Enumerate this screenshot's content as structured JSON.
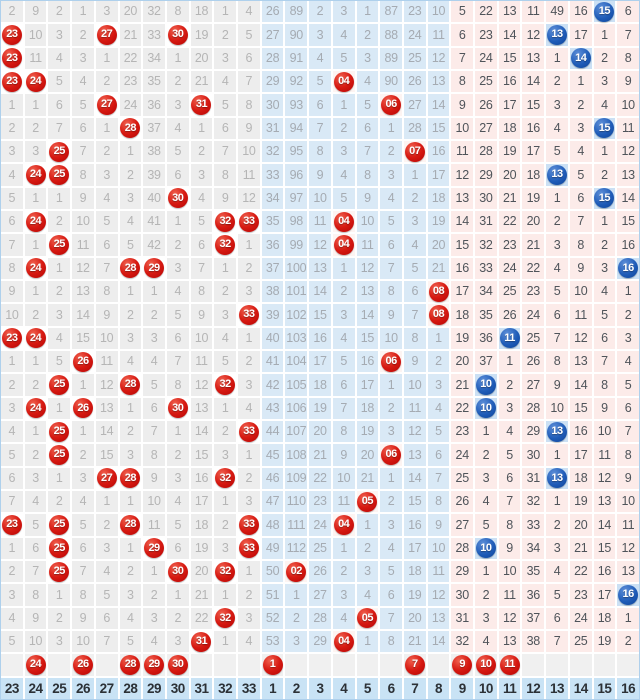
{
  "chart_data": {
    "type": "table",
    "description": "Lottery trend chart: per-number miss counts; R-prefixed cells are drawn red balls, B-prefixed cells are drawn blue balls",
    "sections": [
      {
        "name": "red-zone",
        "label_range": "23-33",
        "col_start": 0,
        "col_end": 10
      },
      {
        "name": "blue-zone-low",
        "label_range": "1-8",
        "col_start": 11,
        "col_end": 18
      },
      {
        "name": "blue-zone-high",
        "label_range": "9-16",
        "col_start": 19,
        "col_end": 26
      }
    ],
    "column_labels": [
      "23",
      "24",
      "25",
      "26",
      "27",
      "28",
      "29",
      "30",
      "31",
      "32",
      "33",
      "1",
      "2",
      "3",
      "4",
      "5",
      "6",
      "7",
      "8",
      "9",
      "10",
      "11",
      "12",
      "13",
      "14",
      "15",
      "16"
    ],
    "rows": [
      [
        "2",
        "9",
        "2",
        "1",
        "3",
        "20",
        "32",
        "8",
        "18",
        "1",
        "4",
        "26",
        "89",
        "2",
        "3",
        "1",
        "87",
        "23",
        "10",
        "5",
        "22",
        "13",
        "11",
        "49",
        "16",
        "B15",
        "6"
      ],
      [
        "R23",
        "10",
        "3",
        "2",
        "R27",
        "21",
        "33",
        "R30",
        "19",
        "2",
        "5",
        "27",
        "90",
        "3",
        "4",
        "2",
        "88",
        "24",
        "11",
        "6",
        "23",
        "14",
        "12",
        "B13",
        "17",
        "1",
        "7"
      ],
      [
        "R23",
        "11",
        "4",
        "3",
        "1",
        "22",
        "34",
        "1",
        "20",
        "3",
        "6",
        "28",
        "91",
        "4",
        "5",
        "3",
        "89",
        "25",
        "12",
        "7",
        "24",
        "15",
        "13",
        "1",
        "B14",
        "2",
        "8"
      ],
      [
        "R23",
        "R24",
        "5",
        "4",
        "2",
        "23",
        "35",
        "2",
        "21",
        "4",
        "7",
        "29",
        "92",
        "5",
        "R04",
        "4",
        "90",
        "26",
        "13",
        "8",
        "25",
        "16",
        "14",
        "2",
        "1",
        "3",
        "9"
      ],
      [
        "1",
        "1",
        "6",
        "5",
        "R27",
        "24",
        "36",
        "3",
        "R31",
        "5",
        "8",
        "30",
        "93",
        "6",
        "1",
        "5",
        "R06",
        "27",
        "14",
        "9",
        "26",
        "17",
        "15",
        "3",
        "2",
        "4",
        "10"
      ],
      [
        "2",
        "2",
        "7",
        "6",
        "1",
        "R28",
        "37",
        "4",
        "1",
        "6",
        "9",
        "31",
        "94",
        "7",
        "2",
        "6",
        "1",
        "28",
        "15",
        "10",
        "27",
        "18",
        "16",
        "4",
        "3",
        "B15",
        "11"
      ],
      [
        "3",
        "3",
        "R25",
        "7",
        "2",
        "1",
        "38",
        "5",
        "2",
        "7",
        "10",
        "32",
        "95",
        "8",
        "3",
        "7",
        "2",
        "R07",
        "16",
        "11",
        "28",
        "19",
        "17",
        "5",
        "4",
        "1",
        "12"
      ],
      [
        "4",
        "R24",
        "R25",
        "8",
        "3",
        "2",
        "39",
        "6",
        "3",
        "8",
        "11",
        "33",
        "96",
        "9",
        "4",
        "8",
        "3",
        "1",
        "17",
        "12",
        "29",
        "20",
        "18",
        "B13",
        "5",
        "2",
        "13"
      ],
      [
        "5",
        "1",
        "1",
        "9",
        "4",
        "3",
        "40",
        "R30",
        "4",
        "9",
        "12",
        "34",
        "97",
        "10",
        "5",
        "9",
        "4",
        "2",
        "18",
        "13",
        "30",
        "21",
        "19",
        "1",
        "6",
        "B15",
        "14"
      ],
      [
        "6",
        "R24",
        "2",
        "10",
        "5",
        "4",
        "41",
        "1",
        "5",
        "R32",
        "R33",
        "35",
        "98",
        "11",
        "R04",
        "10",
        "5",
        "3",
        "19",
        "14",
        "31",
        "22",
        "20",
        "2",
        "7",
        "1",
        "15"
      ],
      [
        "7",
        "1",
        "R25",
        "11",
        "6",
        "5",
        "42",
        "2",
        "6",
        "R32",
        "1",
        "36",
        "99",
        "12",
        "R04",
        "11",
        "6",
        "4",
        "20",
        "15",
        "32",
        "23",
        "21",
        "3",
        "8",
        "2",
        "16"
      ],
      [
        "8",
        "R24",
        "1",
        "12",
        "7",
        "R28",
        "R29",
        "3",
        "7",
        "1",
        "2",
        "37",
        "100",
        "13",
        "1",
        "12",
        "7",
        "5",
        "21",
        "16",
        "33",
        "24",
        "22",
        "4",
        "9",
        "3",
        "B16"
      ],
      [
        "9",
        "1",
        "2",
        "13",
        "8",
        "1",
        "1",
        "4",
        "8",
        "2",
        "3",
        "38",
        "101",
        "14",
        "2",
        "13",
        "8",
        "6",
        "R08",
        "17",
        "34",
        "25",
        "23",
        "5",
        "10",
        "4",
        "1"
      ],
      [
        "10",
        "2",
        "3",
        "14",
        "9",
        "2",
        "2",
        "5",
        "9",
        "3",
        "R33",
        "39",
        "102",
        "15",
        "3",
        "14",
        "9",
        "7",
        "R08",
        "18",
        "35",
        "26",
        "24",
        "6",
        "11",
        "5",
        "2"
      ],
      [
        "R23",
        "R24",
        "4",
        "15",
        "10",
        "3",
        "3",
        "6",
        "10",
        "4",
        "1",
        "40",
        "103",
        "16",
        "4",
        "15",
        "10",
        "8",
        "1",
        "19",
        "36",
        "B11",
        "25",
        "7",
        "12",
        "6",
        "3"
      ],
      [
        "1",
        "1",
        "5",
        "R26",
        "11",
        "4",
        "4",
        "7",
        "11",
        "5",
        "2",
        "41",
        "104",
        "17",
        "5",
        "16",
        "R06",
        "9",
        "2",
        "20",
        "37",
        "1",
        "26",
        "8",
        "13",
        "7",
        "4"
      ],
      [
        "2",
        "2",
        "R25",
        "1",
        "12",
        "R28",
        "5",
        "8",
        "12",
        "R32",
        "3",
        "42",
        "105",
        "18",
        "6",
        "17",
        "1",
        "10",
        "3",
        "21",
        "B10",
        "2",
        "27",
        "9",
        "14",
        "8",
        "5"
      ],
      [
        "3",
        "R24",
        "1",
        "R26",
        "13",
        "1",
        "6",
        "R30",
        "13",
        "1",
        "4",
        "43",
        "106",
        "19",
        "7",
        "18",
        "2",
        "11",
        "4",
        "22",
        "B10",
        "3",
        "28",
        "10",
        "15",
        "9",
        "6"
      ],
      [
        "4",
        "1",
        "R25",
        "1",
        "14",
        "2",
        "7",
        "1",
        "14",
        "2",
        "R33",
        "44",
        "107",
        "20",
        "8",
        "19",
        "3",
        "12",
        "5",
        "23",
        "1",
        "4",
        "29",
        "B13",
        "16",
        "10",
        "7"
      ],
      [
        "5",
        "2",
        "R25",
        "2",
        "15",
        "3",
        "8",
        "2",
        "15",
        "3",
        "1",
        "45",
        "108",
        "21",
        "9",
        "20",
        "R06",
        "13",
        "6",
        "24",
        "2",
        "5",
        "30",
        "1",
        "17",
        "11",
        "8"
      ],
      [
        "6",
        "3",
        "1",
        "3",
        "R27",
        "R28",
        "9",
        "3",
        "16",
        "R32",
        "2",
        "46",
        "109",
        "22",
        "10",
        "21",
        "1",
        "14",
        "7",
        "25",
        "3",
        "6",
        "31",
        "B13",
        "18",
        "12",
        "9"
      ],
      [
        "7",
        "4",
        "2",
        "4",
        "1",
        "1",
        "10",
        "4",
        "17",
        "1",
        "3",
        "47",
        "110",
        "23",
        "11",
        "R05",
        "2",
        "15",
        "8",
        "26",
        "4",
        "7",
        "32",
        "1",
        "19",
        "13",
        "10"
      ],
      [
        "R23",
        "5",
        "R25",
        "5",
        "2",
        "R28",
        "11",
        "5",
        "18",
        "2",
        "R33",
        "48",
        "111",
        "24",
        "R04",
        "1",
        "3",
        "16",
        "9",
        "27",
        "5",
        "8",
        "33",
        "2",
        "20",
        "14",
        "11"
      ],
      [
        "1",
        "6",
        "R25",
        "6",
        "3",
        "1",
        "R29",
        "6",
        "19",
        "3",
        "R33",
        "49",
        "112",
        "25",
        "1",
        "2",
        "4",
        "17",
        "10",
        "28",
        "B10",
        "9",
        "34",
        "3",
        "21",
        "15",
        "12"
      ],
      [
        "2",
        "7",
        "R25",
        "7",
        "4",
        "2",
        "1",
        "R30",
        "20",
        "R32",
        "1",
        "50",
        "R02",
        "26",
        "2",
        "3",
        "5",
        "18",
        "11",
        "29",
        "1",
        "10",
        "35",
        "4",
        "22",
        "16",
        "13"
      ],
      [
        "3",
        "8",
        "1",
        "8",
        "5",
        "3",
        "2",
        "1",
        "21",
        "1",
        "2",
        "51",
        "1",
        "27",
        "3",
        "4",
        "6",
        "19",
        "12",
        "30",
        "2",
        "11",
        "36",
        "5",
        "23",
        "17",
        "B16"
      ],
      [
        "4",
        "9",
        "2",
        "9",
        "6",
        "4",
        "3",
        "2",
        "22",
        "R32",
        "3",
        "52",
        "2",
        "28",
        "4",
        "R05",
        "7",
        "20",
        "13",
        "31",
        "3",
        "12",
        "37",
        "6",
        "24",
        "18",
        "1"
      ],
      [
        "5",
        "10",
        "3",
        "10",
        "7",
        "5",
        "4",
        "3",
        "R31",
        "1",
        "4",
        "53",
        "3",
        "29",
        "R04",
        "1",
        "8",
        "21",
        "14",
        "32",
        "4",
        "13",
        "38",
        "7",
        "25",
        "19",
        "2"
      ]
    ],
    "footer_balls": [
      "",
      "R24",
      "",
      "R26",
      "",
      "R28",
      "R29",
      "R30",
      "",
      "",
      "",
      "R1",
      "",
      "",
      "",
      "",
      "",
      "R7",
      "",
      "R9",
      "R10",
      "R11",
      "",
      "",
      "",
      "",
      ""
    ],
    "footer_labels": [
      "23",
      "24",
      "25",
      "26",
      "27",
      "28",
      "29",
      "30",
      "31",
      "32",
      "33",
      "1",
      "2",
      "3",
      "4",
      "5",
      "6",
      "7",
      "8",
      "9",
      "10",
      "11",
      "12",
      "13",
      "14",
      "15",
      "16"
    ]
  },
  "colors": {
    "red_ball": "#c40a0a",
    "blue_ball": "#1f5cb8",
    "red_zone_cell": "#ededed",
    "blue_low_zone_cell": "#d9e9f6",
    "blue_high_zone_cell": "#fcebe9",
    "red_zone_text": "#b5b5b5",
    "blue_low_zone_text": "#a5abb2",
    "blue_high_zone_text": "#4f545a",
    "ball_cell_highlight_gray_zone": "#ffffff",
    "ball_cell_highlight_blue_zone": "#fdf4f2",
    "ball_cell_highlight_pink_zone": "#cbe0f4",
    "footer_label_bg": "#c9e3f5",
    "footer_label_text": "#2c3136",
    "grid_line": "#ffffff",
    "outer_border": "#aed0ec"
  }
}
